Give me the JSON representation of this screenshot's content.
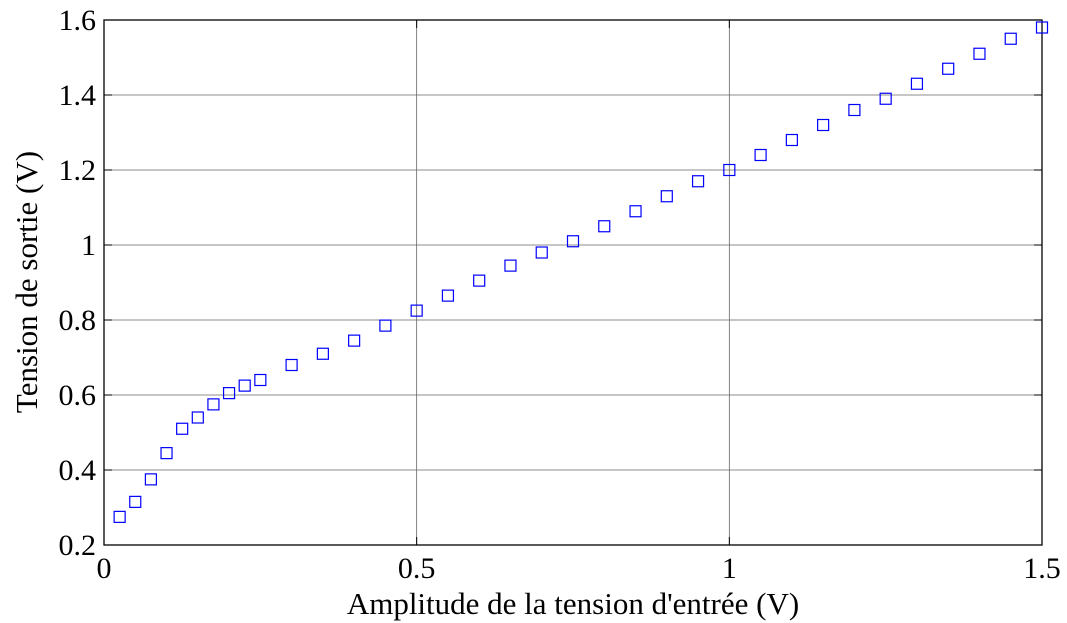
{
  "chart_data": {
    "type": "scatter",
    "title": "",
    "xlabel": "Amplitude de la tension d'entrée (V)",
    "ylabel": "Tension de sortie (V)",
    "xlim": [
      0,
      1.5
    ],
    "ylim": [
      0.2,
      1.6
    ],
    "xticks": [
      0,
      0.5,
      1,
      1.5
    ],
    "xtick_labels": [
      "0",
      "0.5",
      "1",
      "1.5"
    ],
    "yticks": [
      0.2,
      0.4,
      0.6,
      0.8,
      1.0,
      1.2,
      1.4,
      1.6
    ],
    "ytick_labels": [
      "0.2",
      "0.4",
      "0.6",
      "0.8",
      "1",
      "1.2",
      "1.4",
      "1.6"
    ],
    "grid": true,
    "marker": "square-open",
    "marker_color": "#0000ff",
    "series": [
      {
        "x": [
          0.025,
          0.05,
          0.075,
          0.1,
          0.125,
          0.15,
          0.175,
          0.2,
          0.225,
          0.25,
          0.3,
          0.35,
          0.4,
          0.45,
          0.5,
          0.55,
          0.6,
          0.65,
          0.7,
          0.75,
          0.8,
          0.85,
          0.9,
          0.95,
          1.0,
          1.05,
          1.1,
          1.15,
          1.2,
          1.25,
          1.3,
          1.35,
          1.4,
          1.45,
          1.5
        ],
        "y": [
          0.275,
          0.315,
          0.375,
          0.445,
          0.51,
          0.54,
          0.575,
          0.605,
          0.625,
          0.64,
          0.68,
          0.71,
          0.745,
          0.785,
          0.825,
          0.865,
          0.905,
          0.945,
          0.98,
          1.01,
          1.05,
          1.09,
          1.13,
          1.17,
          1.2,
          1.24,
          1.28,
          1.32,
          1.36,
          1.39,
          1.43,
          1.47,
          1.51,
          1.55,
          1.58
        ]
      }
    ]
  }
}
